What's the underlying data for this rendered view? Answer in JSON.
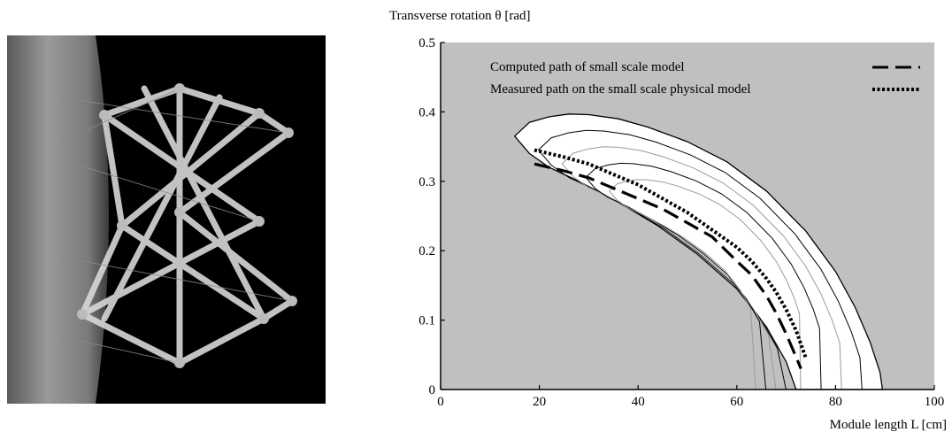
{
  "photo": {
    "description_icon": "tensegrity-module-photo-icon"
  },
  "chart_data": {
    "type": "line",
    "title": "",
    "ylabel": "Transverse rotation θ [rad]",
    "xlabel": "Module length L [cm]",
    "xlim": [
      0,
      100
    ],
    "ylim": [
      0,
      0.5
    ],
    "xticks": [
      0,
      20,
      40,
      60,
      80,
      100
    ],
    "yticks": [
      0,
      0.1,
      0.2,
      0.3,
      0.4,
      0.5
    ],
    "xtick_labels": [
      "0",
      "20",
      "40",
      "60",
      "80",
      "100"
    ],
    "ytick_labels": [
      "0",
      "0.1",
      "0.2",
      "0.3",
      "0.4",
      "0.5"
    ],
    "background_color": "#c0c0c0",
    "grid": false,
    "legend_position": "top",
    "series": [
      {
        "name": "Computed path of small scale model",
        "style": "dashed",
        "x": [
          19,
          25,
          30,
          35,
          40,
          45,
          50,
          55,
          60,
          63,
          66,
          68,
          70,
          71.5,
          73
        ],
        "y": [
          0.325,
          0.315,
          0.305,
          0.29,
          0.275,
          0.26,
          0.24,
          0.22,
          0.185,
          0.165,
          0.135,
          0.11,
          0.08,
          0.055,
          0.03
        ]
      },
      {
        "name": "Measured path on the small scale physical model",
        "style": "dotted",
        "x": [
          19,
          25,
          30,
          35,
          40,
          45,
          50,
          55,
          60,
          63,
          66,
          68,
          70,
          72,
          74
        ],
        "y": [
          0.345,
          0.335,
          0.325,
          0.31,
          0.295,
          0.275,
          0.255,
          0.23,
          0.205,
          0.185,
          0.16,
          0.14,
          0.115,
          0.085,
          0.045
        ]
      }
    ],
    "regions": [
      {
        "role": "outer-boundary",
        "color": "#ffffff",
        "stroke": "#000000",
        "x": [
          15,
          18,
          22,
          26,
          30,
          36,
          42,
          50,
          58,
          66,
          74,
          80,
          84,
          87,
          89,
          89.5,
          72,
          70,
          66,
          60,
          52,
          44,
          36,
          28,
          22,
          18,
          15
        ],
        "y": [
          0.365,
          0.385,
          0.393,
          0.397,
          0.396,
          0.39,
          0.378,
          0.357,
          0.328,
          0.286,
          0.228,
          0.17,
          0.118,
          0.068,
          0.025,
          0,
          0,
          0.04,
          0.09,
          0.145,
          0.195,
          0.236,
          0.27,
          0.3,
          0.32,
          0.34,
          0.365
        ]
      },
      {
        "role": "inner-contours",
        "color": "#000000",
        "count": 4
      }
    ]
  }
}
